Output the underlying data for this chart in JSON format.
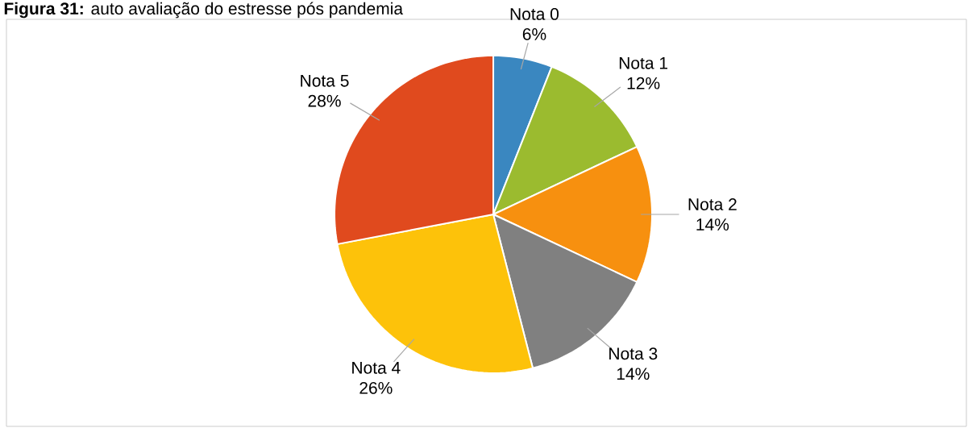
{
  "chart_data": {
    "type": "pie",
    "title": "**Figura 31:** auto avaliação do estresse pós pandemia",
    "categories": [
      "Nota 0",
      "Nota 1",
      "Nota 2",
      "Nota 3",
      "Nota 4",
      "Nota 5"
    ],
    "values": [
      6,
      12,
      14,
      14,
      26,
      28
    ],
    "value_labels": [
      "6%",
      "12%",
      "14%",
      "14%",
      "26%",
      "28%"
    ],
    "colors": [
      "#3a87c0",
      "#9bbb2f",
      "#f7900f",
      "#808080",
      "#fdc20a",
      "#e04a1e"
    ]
  }
}
